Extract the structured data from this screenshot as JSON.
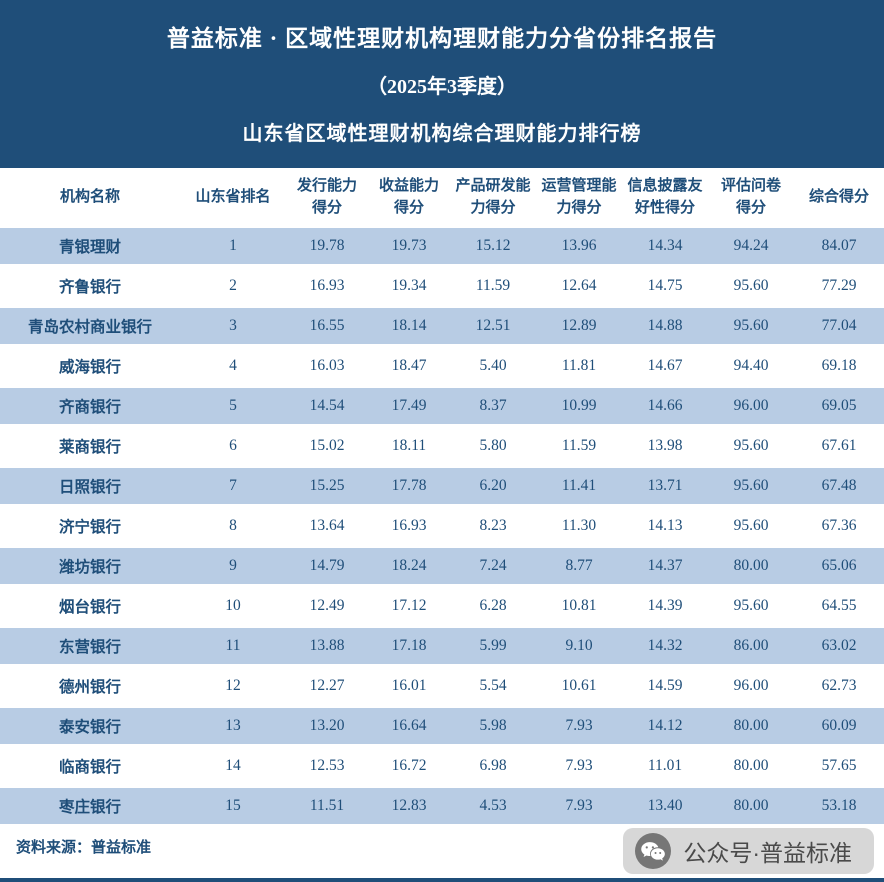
{
  "header": {
    "title_line1": "普益标准 · 区域性理财机构理财能力分省份排名报告",
    "title_line2": "（2025年3季度）",
    "title_line3": "山东省区域性理财机构综合理财能力排行榜"
  },
  "table": {
    "columns": [
      {
        "key": "institution-name",
        "lines": [
          "机构名称"
        ]
      },
      {
        "key": "province-rank",
        "lines": [
          "山东省排名"
        ]
      },
      {
        "key": "issuance-score",
        "lines": [
          "发行能力",
          "得分"
        ]
      },
      {
        "key": "return-score",
        "lines": [
          "收益能力",
          "得分"
        ]
      },
      {
        "key": "product-rnd-score",
        "lines": [
          "产品研发能",
          "力得分"
        ]
      },
      {
        "key": "operation-mgmt-score",
        "lines": [
          "运营管理能",
          "力得分"
        ]
      },
      {
        "key": "info-disclosure-score",
        "lines": [
          "信息披露友",
          "好性得分"
        ]
      },
      {
        "key": "questionnaire-score",
        "lines": [
          "评估问卷",
          "得分"
        ]
      },
      {
        "key": "comprehensive-score",
        "lines": [
          "综合得分"
        ]
      }
    ],
    "rows": [
      [
        "青银理财",
        "1",
        "19.78",
        "19.73",
        "15.12",
        "13.96",
        "14.34",
        "94.24",
        "84.07"
      ],
      [
        "齐鲁银行",
        "2",
        "16.93",
        "19.34",
        "11.59",
        "12.64",
        "14.75",
        "95.60",
        "77.29"
      ],
      [
        "青岛农村商业银行",
        "3",
        "16.55",
        "18.14",
        "12.51",
        "12.89",
        "14.88",
        "95.60",
        "77.04"
      ],
      [
        "威海银行",
        "4",
        "16.03",
        "18.47",
        "5.40",
        "11.81",
        "14.67",
        "94.40",
        "69.18"
      ],
      [
        "齐商银行",
        "5",
        "14.54",
        "17.49",
        "8.37",
        "10.99",
        "14.66",
        "96.00",
        "69.05"
      ],
      [
        "莱商银行",
        "6",
        "15.02",
        "18.11",
        "5.80",
        "11.59",
        "13.98",
        "95.60",
        "67.61"
      ],
      [
        "日照银行",
        "7",
        "15.25",
        "17.78",
        "6.20",
        "11.41",
        "13.71",
        "95.60",
        "67.48"
      ],
      [
        "济宁银行",
        "8",
        "13.64",
        "16.93",
        "8.23",
        "11.30",
        "14.13",
        "95.60",
        "67.36"
      ],
      [
        "潍坊银行",
        "9",
        "14.79",
        "18.24",
        "7.24",
        "8.77",
        "14.37",
        "80.00",
        "65.06"
      ],
      [
        "烟台银行",
        "10",
        "12.49",
        "17.12",
        "6.28",
        "10.81",
        "14.39",
        "95.60",
        "64.55"
      ],
      [
        "东营银行",
        "11",
        "13.88",
        "17.18",
        "5.99",
        "9.10",
        "14.32",
        "86.00",
        "63.02"
      ],
      [
        "德州银行",
        "12",
        "12.27",
        "16.01",
        "5.54",
        "10.61",
        "14.59",
        "96.00",
        "62.73"
      ],
      [
        "泰安银行",
        "13",
        "13.20",
        "16.64",
        "5.98",
        "7.93",
        "14.12",
        "80.00",
        "60.09"
      ],
      [
        "临商银行",
        "14",
        "12.53",
        "16.72",
        "6.98",
        "7.93",
        "11.01",
        "80.00",
        "57.65"
      ],
      [
        "枣庄银行",
        "15",
        "11.51",
        "12.83",
        "4.53",
        "7.93",
        "13.40",
        "80.00",
        "53.18"
      ]
    ]
  },
  "footer": {
    "source": "资料来源：普益标准",
    "wechat_account": "公众号·普益标准",
    "wechat_icon": "wechat-logo"
  },
  "colors": {
    "header_bg": "#1F4E79",
    "row_alt_bg": "#B8CCE4",
    "text": "#1F4E79",
    "badge_bg": "#D7D7D7",
    "bottom_bar": "#1F4E79"
  }
}
